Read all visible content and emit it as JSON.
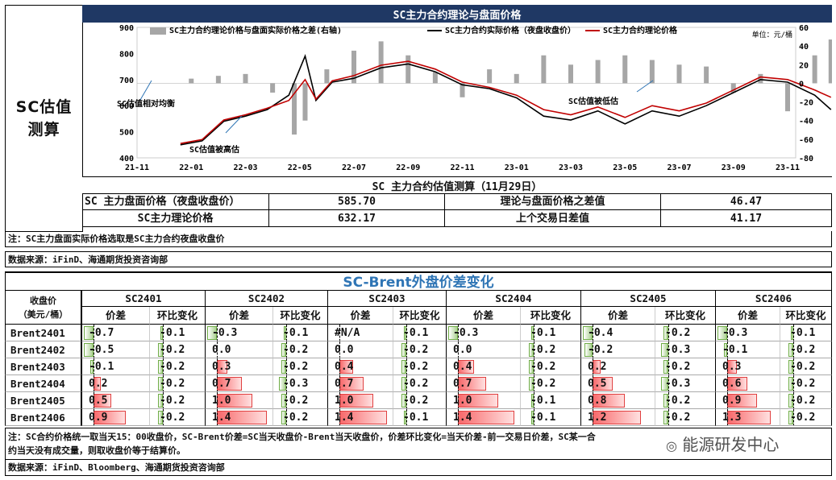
{
  "side_title": "SC估值\n测算",
  "chart_title": "SC主力合约理论与盘面价格",
  "chart_data": {
    "type": "line",
    "x_ticks": [
      "21-11",
      "22-01",
      "22-03",
      "22-05",
      "22-07",
      "22-09",
      "22-11",
      "23-01",
      "23-03",
      "23-05",
      "23-07",
      "23-09",
      "23-11"
    ],
    "y_left_ticks": [
      900,
      800,
      700,
      600,
      500,
      400
    ],
    "y_right_ticks": [
      60,
      40,
      20,
      0,
      -20,
      -40,
      -60,
      -80
    ],
    "ylim_left": [
      400,
      900
    ],
    "ylim_right": [
      -80,
      60
    ],
    "legend": [
      {
        "name": "SC主力合约理论价格与盘面实际价格之差(右轴)",
        "color": "#a6a6a6",
        "type": "bar"
      },
      {
        "name": "SC主力合约实际价格（夜盘收盘价）",
        "color": "#000000",
        "type": "line"
      },
      {
        "name": "SC主力合约理论价格",
        "color": "#c00000",
        "type": "line"
      }
    ],
    "unit": "单位：元/桶",
    "annotations": [
      "SC估值相对均衡",
      "SC估值被高估",
      "SC估值被低估"
    ],
    "series": [
      {
        "name": "SC主力合约实际价格（夜盘收盘价）",
        "x": [
          0.8,
          1.2,
          1.6,
          2.0,
          2.4,
          2.8,
          3.1,
          3.3,
          3.6,
          4.0,
          4.5,
          5.0,
          5.5,
          6.0,
          6.5,
          7.0,
          7.5,
          8.0,
          8.5,
          9.0,
          9.5,
          10.0,
          10.5,
          11.0,
          11.5,
          12.0,
          12.5,
          12.8
        ],
        "values": [
          450,
          465,
          540,
          560,
          585,
          640,
          790,
          620,
          690,
          705,
          745,
          760,
          730,
          680,
          665,
          630,
          560,
          545,
          580,
          530,
          580,
          560,
          600,
          650,
          700,
          690,
          640,
          585
        ]
      },
      {
        "name": "SC主力合约理论价格",
        "x": [
          0.8,
          1.2,
          1.6,
          2.0,
          2.4,
          2.8,
          3.1,
          3.3,
          3.6,
          4.0,
          4.5,
          5.0,
          5.5,
          6.0,
          6.5,
          7.0,
          7.5,
          8.0,
          8.5,
          9.0,
          9.5,
          10.0,
          10.5,
          11.0,
          11.5,
          12.0,
          12.5,
          12.8
        ],
        "values": [
          455,
          470,
          545,
          565,
          590,
          620,
          700,
          625,
          695,
          715,
          755,
          770,
          740,
          690,
          670,
          640,
          585,
          565,
          595,
          555,
          600,
          580,
          610,
          660,
          710,
          700,
          660,
          632
        ]
      },
      {
        "name": "SC主力合约理论价格与盘面实际价格之差(右轴)",
        "x": [
          1.0,
          1.5,
          2.0,
          2.5,
          2.9,
          3.1,
          3.5,
          4.0,
          4.5,
          5.0,
          5.5,
          6.0,
          6.5,
          7.0,
          7.5,
          8.0,
          8.5,
          9.0,
          9.5,
          10.0,
          10.5,
          11.0,
          11.5,
          12.0,
          12.5,
          12.8
        ],
        "values": [
          5,
          8,
          10,
          -10,
          -55,
          -40,
          15,
          35,
          45,
          30,
          12,
          -15,
          15,
          10,
          30,
          20,
          25,
          30,
          25,
          20,
          18,
          -10,
          10,
          -30,
          30,
          47
        ]
      }
    ]
  },
  "est_title": "SC 主力合约估值测算（11月29日）",
  "est": {
    "r1_label": "SC 主力盘面价格（夜盘收盘价）",
    "r1_value": "585.70",
    "r1_label2": "理论与盘面价格之差值",
    "r1_value2": "46.47",
    "r2_label": "SC主力理论价格",
    "r2_value": "632.17",
    "r2_label2": "上个交易日差值",
    "r2_value2": "41.17"
  },
  "note1": "注：SC主力盘面实际价格选取是SC主力合约夜盘收盘价",
  "source1": "数据来源：iFinD、海通期货投资咨询部",
  "bt_title": "SC-Brent外盘价差变化",
  "bt_row_header": "收盘价\n（美元/桶）",
  "bt_sub": {
    "spread": "价差",
    "change": "环比变化"
  },
  "bt_groups": [
    "SC2401",
    "SC2402",
    "SC2403",
    "SC2404",
    "SC2405",
    "SC2406"
  ],
  "bt_rows": [
    {
      "label": "Brent2401",
      "cells": [
        [
          "-0.7",
          "-0.1"
        ],
        [
          "-0.3",
          "-0.1"
        ],
        [
          "#N/A",
          "-0.1"
        ],
        [
          "-0.3",
          "-0.1"
        ],
        [
          "-0.4",
          "-0.2"
        ],
        [
          "-0.3",
          "-0.1"
        ]
      ]
    },
    {
      "label": "Brent2402",
      "cells": [
        [
          "-0.5",
          "-0.2"
        ],
        [
          "0.0",
          "-0.2"
        ],
        [
          "0.0",
          "-0.2"
        ],
        [
          "0.0",
          "-0.2"
        ],
        [
          "-0.2",
          "-0.3"
        ],
        [
          "-0.1",
          "-0.2"
        ]
      ]
    },
    {
      "label": "Brent2403",
      "cells": [
        [
          "-0.1",
          "-0.2"
        ],
        [
          "0.3",
          "-0.2"
        ],
        [
          "0.4",
          "-0.2"
        ],
        [
          "0.4",
          "-0.2"
        ],
        [
          "0.2",
          "-0.2"
        ],
        [
          "0.3",
          "-0.2"
        ]
      ]
    },
    {
      "label": "Brent2404",
      "cells": [
        [
          "0.2",
          "-0.2"
        ],
        [
          "0.7",
          "-0.3"
        ],
        [
          "0.7",
          "-0.2"
        ],
        [
          "0.7",
          "-0.2"
        ],
        [
          "0.5",
          "-0.3"
        ],
        [
          "0.6",
          "-0.2"
        ]
      ]
    },
    {
      "label": "Brent2405",
      "cells": [
        [
          "0.5",
          "-0.2"
        ],
        [
          "1.0",
          "-0.2"
        ],
        [
          "1.0",
          "-0.2"
        ],
        [
          "1.0",
          "-0.1"
        ],
        [
          "0.8",
          "-0.2"
        ],
        [
          "0.9",
          "-0.2"
        ]
      ]
    },
    {
      "label": "Brent2406",
      "cells": [
        [
          "0.9",
          "-0.2"
        ],
        [
          "1.4",
          "-0.2"
        ],
        [
          "1.4",
          "-0.1"
        ],
        [
          "1.4",
          "-0.1"
        ],
        [
          "1.2",
          "-0.2"
        ],
        [
          "1.3",
          "-0.2"
        ]
      ]
    }
  ],
  "foot_note": "注：SC合约价格统一取当天15：00收盘价，SC-Brent价差=SC当天收盘价-Brent当天收盘价，价差环比变化=当天价差-前一交易日价差，SC某一合\n约当天没有成交量，则取收盘价等于结算价。",
  "source2": "数据来源：iFinD、Bloomberg、海通期货投资咨询部",
  "watermark": "能源研发中心"
}
